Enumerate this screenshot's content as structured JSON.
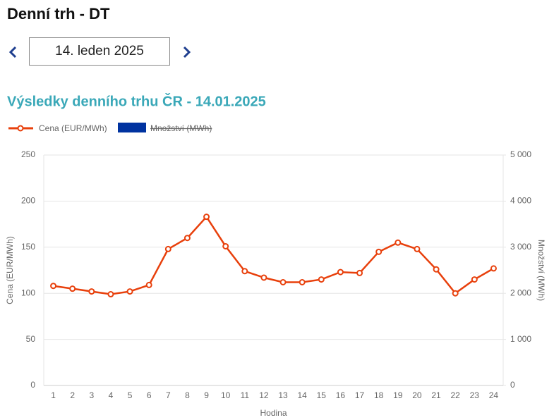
{
  "header": {
    "title": "Denní trh - DT",
    "date": "14. leden 2025"
  },
  "chart_data": {
    "type": "line",
    "title": "Výsledky denního trhu ČR - 14.01.2025",
    "x_label": "Hodina",
    "y_label": "Cena (EUR/MWh)",
    "y2_label": "Množství (MWh)",
    "categories": [
      "1",
      "2",
      "3",
      "4",
      "5",
      "6",
      "7",
      "8",
      "9",
      "10",
      "11",
      "12",
      "13",
      "14",
      "15",
      "16",
      "17",
      "18",
      "19",
      "20",
      "21",
      "22",
      "23",
      "24"
    ],
    "series": [
      {
        "name": "Cena (EUR/MWh)",
        "color": "#e8400c",
        "values": [
          108,
          105,
          102,
          99,
          102,
          109,
          148,
          160,
          183,
          151,
          124,
          117,
          112,
          112,
          115,
          123,
          122,
          145,
          155,
          148,
          126,
          100,
          115,
          127
        ]
      },
      {
        "name": "Množství (MWh)",
        "color": "#0033a0",
        "axis": "y2",
        "hidden": true,
        "values": [
          null,
          null,
          null,
          null,
          null,
          null,
          null,
          null,
          null,
          null,
          null,
          null,
          null,
          null,
          null,
          null,
          null,
          null,
          null,
          null,
          null,
          null,
          null,
          null
        ]
      }
    ],
    "ylim": [
      0,
      250
    ],
    "yticks": [
      0,
      50,
      100,
      150,
      200,
      250
    ],
    "y2lim": [
      0,
      5000
    ],
    "y2ticks": [
      0,
      {
        "value": 1000,
        "label": "1 000"
      },
      {
        "value": 2000,
        "label": "2 000"
      },
      {
        "value": 3000,
        "label": "3 000"
      },
      {
        "value": 4000,
        "label": "4 000"
      },
      {
        "value": 5000,
        "label": "5 000"
      }
    ],
    "grid": true
  }
}
